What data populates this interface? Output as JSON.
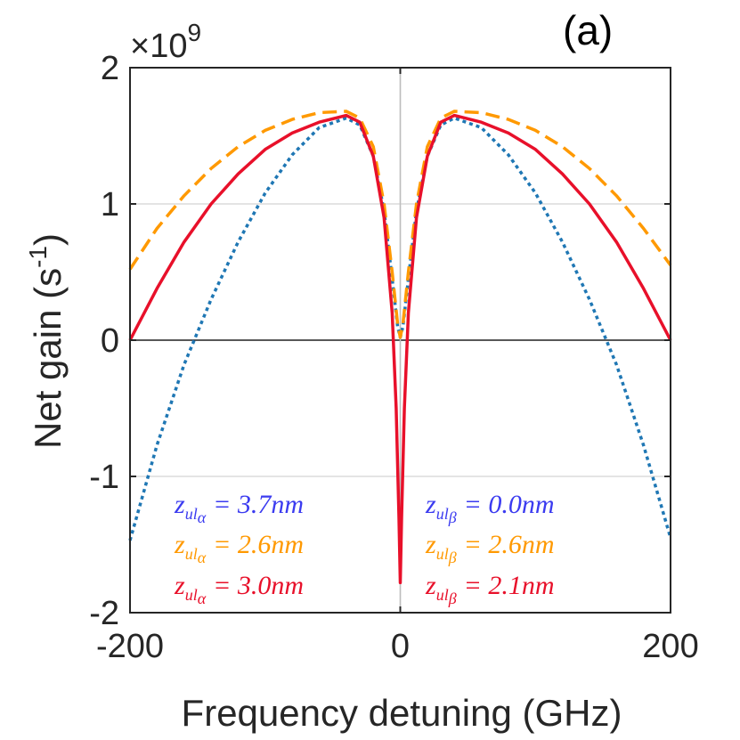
{
  "chart_data": {
    "type": "line",
    "panel_label": "(a)",
    "xlabel": "Frequency detuning (GHz)",
    "ylabel": "Net gain (s",
    "ylabel_sup": "-1",
    "ylabel_close": ")",
    "y_multiplier_prefix": "×10",
    "y_multiplier_exp": "9",
    "xlim": [
      -200,
      200
    ],
    "ylim": [
      -2,
      2
    ],
    "x_ticks": [
      -200,
      0,
      200
    ],
    "x_tick_labels": [
      "-200",
      "0",
      "200"
    ],
    "y_ticks": [
      -2,
      -1,
      0,
      1,
      2
    ],
    "y_tick_labels": [
      "-2",
      "-1",
      "0",
      "1",
      "2"
    ],
    "grid": true,
    "series": [
      {
        "name": "blue-dotted",
        "color": "#1f77b4",
        "style": "dotted",
        "x": [
          -200,
          -180,
          -160,
          -140,
          -120,
          -100,
          -80,
          -60,
          -40,
          -30,
          -20,
          -12,
          -6,
          -2,
          0,
          2,
          6,
          12,
          20,
          30,
          40,
          60,
          80,
          100,
          120,
          140,
          160,
          180,
          200
        ],
        "y": [
          -1.47,
          -0.77,
          -0.18,
          0.3,
          0.72,
          1.08,
          1.36,
          1.56,
          1.63,
          1.58,
          1.35,
          0.95,
          0.45,
          0.1,
          0.02,
          0.1,
          0.45,
          0.95,
          1.35,
          1.58,
          1.63,
          1.56,
          1.36,
          1.08,
          0.72,
          0.3,
          -0.18,
          -0.77,
          -1.45
        ]
      },
      {
        "name": "orange-dashed",
        "color": "#ff9900",
        "style": "dashed",
        "x": [
          -200,
          -180,
          -160,
          -140,
          -120,
          -100,
          -80,
          -60,
          -40,
          -30,
          -20,
          -12,
          -6,
          -2,
          0,
          2,
          6,
          12,
          20,
          30,
          40,
          60,
          80,
          100,
          120,
          140,
          160,
          180,
          200
        ],
        "y": [
          0.52,
          0.82,
          1.06,
          1.26,
          1.42,
          1.54,
          1.62,
          1.67,
          1.68,
          1.63,
          1.42,
          1.0,
          0.5,
          0.12,
          0.02,
          0.12,
          0.5,
          1.0,
          1.42,
          1.63,
          1.68,
          1.67,
          1.62,
          1.54,
          1.42,
          1.26,
          1.06,
          0.82,
          0.55
        ]
      },
      {
        "name": "red-solid",
        "color": "#e8102a",
        "style": "solid",
        "x": [
          -200,
          -180,
          -160,
          -140,
          -120,
          -100,
          -80,
          -60,
          -40,
          -30,
          -20,
          -12,
          -6,
          -3,
          -1,
          0,
          1,
          3,
          6,
          12,
          20,
          30,
          40,
          60,
          80,
          100,
          120,
          140,
          160,
          180,
          200
        ],
        "y": [
          0.0,
          0.38,
          0.72,
          1.0,
          1.22,
          1.4,
          1.52,
          1.6,
          1.65,
          1.6,
          1.35,
          0.9,
          0.2,
          -0.5,
          -1.3,
          -1.78,
          -1.3,
          -0.5,
          0.2,
          0.9,
          1.35,
          1.6,
          1.65,
          1.6,
          1.52,
          1.4,
          1.22,
          1.0,
          0.72,
          0.38,
          0.0
        ]
      }
    ],
    "legend": {
      "placement": "bottom-center",
      "entries": [
        {
          "var": "z",
          "sub": "ul",
          "subsub": "α",
          "value": "= 3.7nm",
          "color": "#3b3bf0"
        },
        {
          "var": "z",
          "sub": "ul",
          "subsub": "β",
          "value": "= 0.0nm",
          "color": "#3b3bf0"
        },
        {
          "var": "z",
          "sub": "ul",
          "subsub": "α",
          "value": "= 2.6nm",
          "color": "#ff9900"
        },
        {
          "var": "z",
          "sub": "ul",
          "subsub": "β",
          "value": "= 2.6nm",
          "color": "#ff9900"
        },
        {
          "var": "z",
          "sub": "ul",
          "subsub": "α",
          "value": "= 3.0nm",
          "color": "#e8102a"
        },
        {
          "var": "z",
          "sub": "ul",
          "subsub": "β",
          "value": "= 2.1nm",
          "color": "#e8102a"
        }
      ]
    }
  }
}
